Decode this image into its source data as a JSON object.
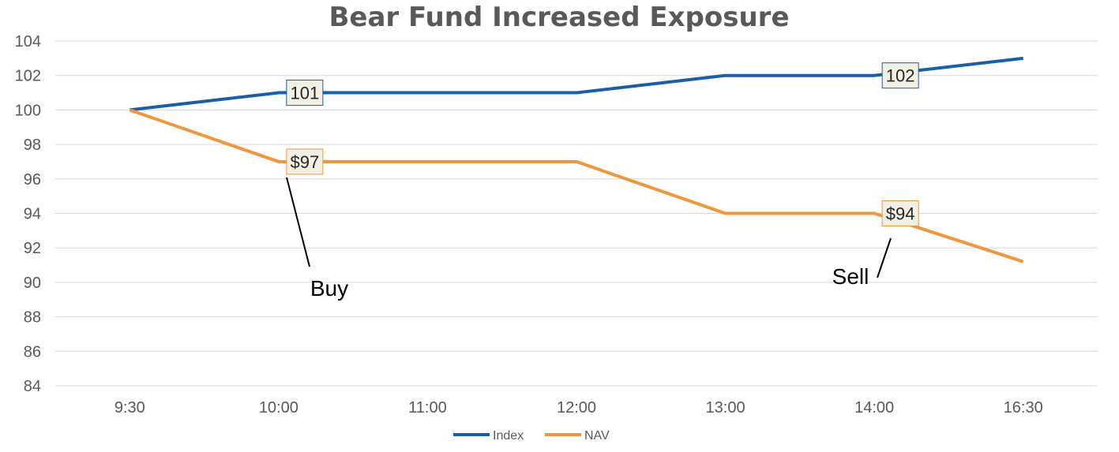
{
  "chart_data": {
    "type": "line",
    "title": "Bear Fund Increased Exposure",
    "categories": [
      "9:30",
      "10:00",
      "11:00",
      "12:00",
      "13:00",
      "14:00",
      "16:30"
    ],
    "ylim": [
      84,
      104
    ],
    "yticks": [
      "84",
      "86",
      "88",
      "90",
      "92",
      "94",
      "96",
      "98",
      "100",
      "102",
      "104"
    ],
    "grid": true,
    "legend_position": "bottom",
    "series": [
      {
        "name": "Index",
        "color": "#1a5ea8",
        "values": [
          100,
          101,
          101,
          101,
          102,
          102,
          103
        ]
      },
      {
        "name": "NAV",
        "color": "#f0963c",
        "values": [
          100,
          97,
          97,
          97,
          94,
          94,
          91.2
        ]
      }
    ],
    "data_labels": [
      {
        "series": 0,
        "point": 1,
        "text": "101"
      },
      {
        "series": 0,
        "point": 5,
        "text": "102"
      },
      {
        "series": 1,
        "point": 1,
        "text": "$97"
      },
      {
        "series": 1,
        "point": 5,
        "text": "$94"
      }
    ],
    "annotations": [
      {
        "text": "Buy",
        "series": 1,
        "point": 1
      },
      {
        "text": "Sell",
        "series": 1,
        "point": 5
      }
    ]
  }
}
